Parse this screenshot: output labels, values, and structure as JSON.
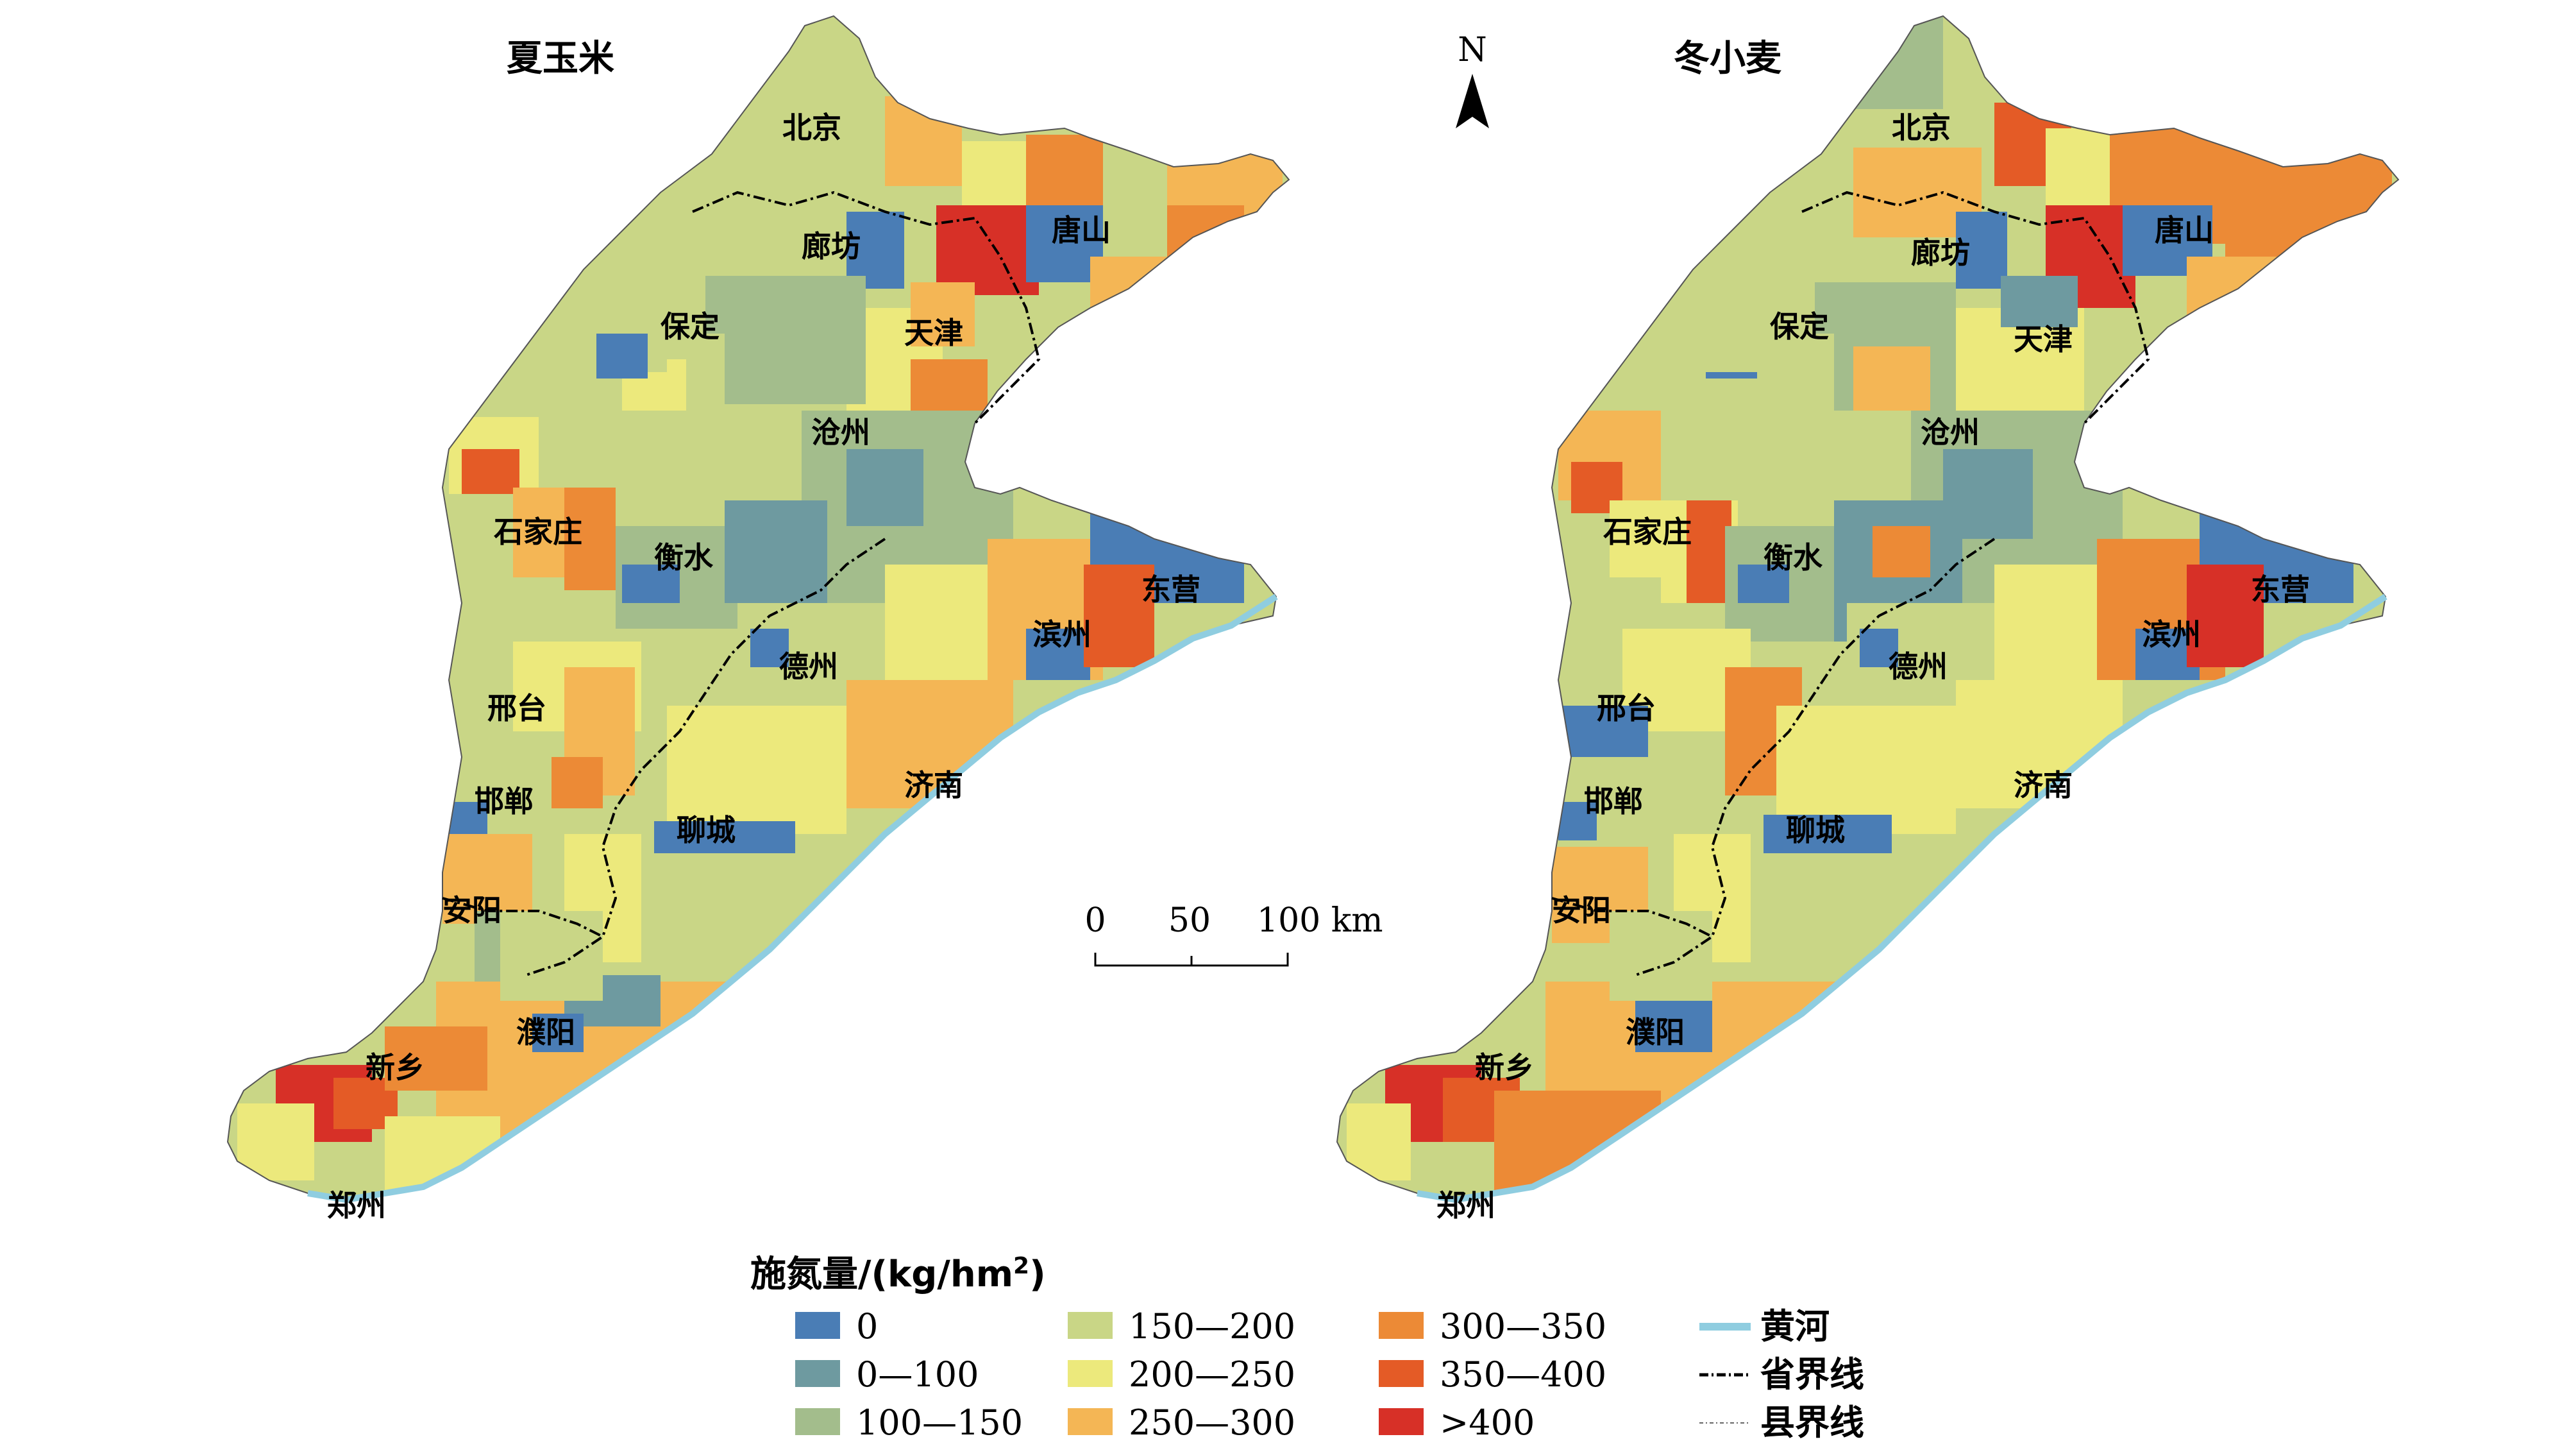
{
  "maps": [
    {
      "title": "夏玉米",
      "cities": [
        "北京",
        "廊坊",
        "唐山",
        "保定",
        "天津",
        "沧州",
        "石家庄",
        "衡水",
        "东营",
        "滨州",
        "德州",
        "邢台",
        "济南",
        "邯郸",
        "聊城",
        "安阳",
        "濮阳",
        "新乡",
        "郑州"
      ]
    },
    {
      "title": "冬小麦",
      "cities": [
        "北京",
        "唐山",
        "廊坊",
        "保定",
        "天津",
        "沧州",
        "石家庄",
        "衡水",
        "东营",
        "滨州",
        "德州",
        "邢台",
        "济南",
        "邯郸",
        "聊城",
        "安阳",
        "濮阳",
        "新乡",
        "郑州"
      ]
    }
  ],
  "north_arrow": "N",
  "scale_bar": {
    "ticks": [
      "0",
      "50",
      "100 km"
    ]
  },
  "legend": {
    "title": "施氮量/(kg/hm",
    "title_sup": "2",
    "title_end": ")",
    "classes": [
      {
        "label": "0",
        "color": "#4a7db5"
      },
      {
        "label": "0—100",
        "color": "#6e9aa0"
      },
      {
        "label": "100—150",
        "color": "#a3bd8c"
      },
      {
        "label": "150—200",
        "color": "#c9d686"
      },
      {
        "label": "200—250",
        "color": "#ece97c"
      },
      {
        "label": "250—300",
        "color": "#f4b655"
      },
      {
        "label": "300—350",
        "color": "#ec8a36"
      },
      {
        "label": "350—400",
        "color": "#e45b26"
      },
      {
        "label": ">400",
        "color": "#d73027"
      }
    ],
    "lines": [
      {
        "label": "黄河",
        "style": "river",
        "color": "#8fcde0"
      },
      {
        "label": "省界线",
        "style": "dashdot"
      },
      {
        "label": "县界线",
        "style": "dotted"
      }
    ]
  }
}
